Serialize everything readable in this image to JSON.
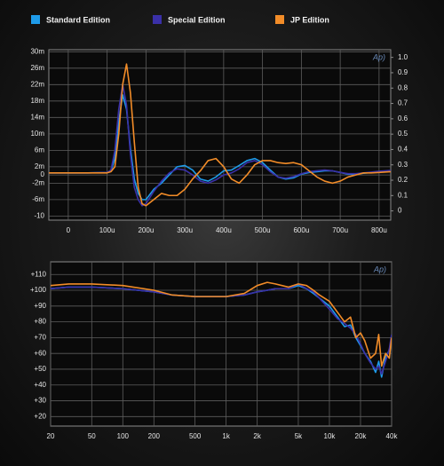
{
  "chart_data": [
    {
      "type": "line",
      "watermark": "Ap)",
      "x": [
        -5e-05,
        0,
        5e-05,
        0.0001,
        0.00011,
        0.00012,
        0.00013,
        0.00014,
        0.00015,
        0.00016,
        0.00017,
        0.00018,
        0.00019,
        0.0002,
        0.00022,
        0.00024,
        0.00026,
        0.00028,
        0.0003,
        0.00032,
        0.00034,
        0.00036,
        0.00038,
        0.0004,
        0.00042,
        0.00044,
        0.00046,
        0.00048,
        0.0005,
        0.00052,
        0.00054,
        0.00056,
        0.00058,
        0.0006,
        0.00062,
        0.00064,
        0.00066,
        0.00068,
        0.0007,
        0.00072,
        0.00074,
        0.00076,
        0.00078,
        0.0008,
        0.00083
      ],
      "series": [
        {
          "name": "Standard Edition",
          "color": "#1e9be9",
          "values": [
            0.0005,
            0.0005,
            0.0005,
            0.0006,
            0.001,
            0.004,
            0.013,
            0.0195,
            0.016,
            0.0065,
            -0.001,
            -0.0045,
            -0.006,
            -0.006,
            -0.0035,
            -0.002,
            0,
            0.002,
            0.0023,
            0.0012,
            -0.001,
            -0.0015,
            -0.0005,
            0.001,
            0.0012,
            0.0023,
            0.0035,
            0.004,
            0.003,
            0.0012,
            -0.0005,
            -0.001,
            -0.0007,
            0.0002,
            0.0006,
            0.0008,
            0.001,
            0.001,
            0.0006,
            0.0002,
            0.0002,
            0.0004,
            0.0006,
            0.0008,
            0.001
          ]
        },
        {
          "name": "Special Edition",
          "color": "#3a30a8",
          "values": [
            0.0005,
            0.0005,
            0.0005,
            0.0006,
            0.0012,
            0.006,
            0.016,
            0.022,
            0.017,
            0.005,
            -0.003,
            -0.006,
            -0.0075,
            -0.007,
            -0.004,
            -0.0015,
            0.0005,
            0.0015,
            0.0012,
            0,
            -0.0015,
            -0.002,
            -0.0012,
            0,
            0.0005,
            0.0015,
            0.003,
            0.0035,
            0.0025,
            0.0008,
            -0.0005,
            -0.0008,
            -0.0004,
            0.0003,
            0.0008,
            0.001,
            0.0012,
            0.001,
            0.0006,
            0.0003,
            0.0003,
            0.0005,
            0.0007,
            0.0009,
            0.0011
          ]
        },
        {
          "name": "JP Edition",
          "color": "#f28c28",
          "values": [
            0.0005,
            0.0005,
            0.0005,
            0.0005,
            0.0008,
            0.002,
            0.01,
            0.022,
            0.027,
            0.02,
            0.008,
            -0.003,
            -0.007,
            -0.0075,
            -0.006,
            -0.0045,
            -0.005,
            -0.005,
            -0.0035,
            -0.001,
            0.001,
            0.0035,
            0.004,
            0.002,
            -0.001,
            -0.002,
            0,
            0.0025,
            0.0035,
            0.0035,
            0.003,
            0.0028,
            0.003,
            0.0025,
            0.001,
            -0.0005,
            -0.0015,
            -0.002,
            -0.0015,
            -0.0005,
            0,
            0.0005,
            0.0005,
            0.0006,
            0.0008
          ]
        }
      ],
      "xlim": [
        -5e-05,
        0.00083
      ],
      "xticks": [
        0,
        {
          "value": 0.0001,
          "label": "100u"
        },
        {
          "value": 0.0002,
          "label": "200u"
        },
        {
          "value": 0.0003,
          "label": "300u"
        },
        {
          "value": 0.0004,
          "label": "400u"
        },
        {
          "value": 0.0005,
          "label": "500u"
        },
        {
          "value": 0.0006,
          "label": "600u"
        },
        {
          "value": 0.0007,
          "label": "700u"
        },
        {
          "value": 0.0008,
          "label": "800u"
        }
      ],
      "ylim": [
        -0.011,
        0.0305
      ],
      "yticks": [
        {
          "value": 0.03,
          "label": "30m"
        },
        {
          "value": 0.026,
          "label": "26m"
        },
        {
          "value": 0.022,
          "label": "22m"
        },
        {
          "value": 0.018,
          "label": "18m"
        },
        {
          "value": 0.014,
          "label": "14m"
        },
        {
          "value": 0.01,
          "label": "10m"
        },
        {
          "value": 0.006,
          "label": "6m"
        },
        {
          "value": 0.002,
          "label": "2m"
        },
        0,
        {
          "value": -0.002,
          "label": "-2m"
        },
        {
          "value": -0.006,
          "label": "-6m"
        },
        {
          "value": -0.01,
          "label": "-10"
        }
      ],
      "y2lim": [
        -0.06,
        1.05
      ],
      "y2ticks": [
        {
          "value": 1,
          "label": "1.0"
        },
        0.9,
        0.8,
        0.7,
        0.6,
        0.5,
        0.4,
        0.3,
        0.2,
        0.1,
        0
      ],
      "grid": true
    },
    {
      "type": "line",
      "watermark": "Ap)",
      "xscale": "log",
      "x": [
        20,
        30,
        50,
        100,
        200,
        300,
        500,
        1000,
        1500,
        2000,
        2500,
        3000,
        4000,
        5000,
        6000,
        7000,
        8000,
        10000,
        12000,
        14000,
        16000,
        18000,
        20000,
        22000,
        25000,
        28000,
        30000,
        32000,
        35000,
        38000,
        40000
      ],
      "series": [
        {
          "name": "Standard Edition",
          "color": "#1e9be9",
          "values": [
            101,
            102,
            102,
            101,
            99,
            97,
            96,
            96,
            97,
            99,
            100,
            101,
            101,
            103,
            101,
            98,
            95,
            90,
            83,
            77,
            78,
            70,
            65,
            60,
            55,
            48,
            55,
            45,
            58,
            62,
            70
          ]
        },
        {
          "name": "Special Edition",
          "color": "#3a30a8",
          "values": [
            101,
            102,
            102,
            101,
            99,
            97,
            96,
            96,
            97,
            99,
            100,
            101,
            101,
            104,
            101,
            99,
            95,
            88,
            82,
            79,
            76,
            72,
            66,
            60,
            54,
            50,
            52,
            47,
            55,
            63,
            72
          ]
        },
        {
          "name": "JP Edition",
          "color": "#f28c28",
          "values": [
            103,
            104,
            104,
            103,
            100,
            97,
            96,
            96,
            98,
            103,
            105,
            104,
            102,
            104,
            103,
            100,
            97,
            93,
            86,
            80,
            83,
            70,
            73,
            68,
            57,
            60,
            72,
            52,
            60,
            57,
            70
          ]
        }
      ],
      "xlim": [
        20,
        40000
      ],
      "xticks": [
        20,
        50,
        100,
        200,
        500,
        {
          "value": 1000,
          "label": "1k"
        },
        {
          "value": 2000,
          "label": "2k"
        },
        {
          "value": 5000,
          "label": "5k"
        },
        {
          "value": 10000,
          "label": "10k"
        },
        {
          "value": 20000,
          "label": "20k"
        },
        {
          "value": 40000,
          "label": "40k"
        }
      ],
      "ylim": [
        14,
        118
      ],
      "yticks": [
        {
          "value": 110,
          "label": "+110"
        },
        {
          "value": 100,
          "label": "+100"
        },
        {
          "value": 90,
          "label": "+90"
        },
        {
          "value": 80,
          "label": "+80"
        },
        {
          "value": 70,
          "label": "+70"
        },
        {
          "value": 60,
          "label": "+60"
        },
        {
          "value": 50,
          "label": "+50"
        },
        {
          "value": 40,
          "label": "+40"
        },
        {
          "value": 30,
          "label": "+30"
        },
        {
          "value": 20,
          "label": "+20"
        }
      ],
      "grid": true
    }
  ]
}
